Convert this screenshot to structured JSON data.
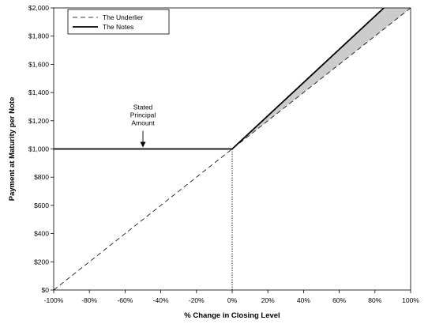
{
  "chart_data": {
    "type": "line",
    "xlabel": "% Change in Closing Level",
    "ylabel": "Payment at Maturity per Note",
    "xlim": [
      -100,
      100
    ],
    "ylim": [
      0,
      2000
    ],
    "x_ticks": [
      -100,
      -80,
      -60,
      -40,
      -20,
      0,
      20,
      40,
      60,
      80,
      100
    ],
    "x_tick_labels": [
      "-100%",
      "-80%",
      "-60%",
      "-40%",
      "-20%",
      "0%",
      "20%",
      "40%",
      "60%",
      "80%",
      "100%"
    ],
    "y_ticks": [
      0,
      200,
      400,
      600,
      800,
      1000,
      1200,
      1400,
      1600,
      1800,
      2000
    ],
    "y_tick_labels": [
      "$0",
      "$200",
      "$400",
      "$600",
      "$800",
      "$1,000",
      "$1,200",
      "$1,400",
      "$1,600",
      "$1,800",
      "$2,000"
    ],
    "series": [
      {
        "name": "The Underlier",
        "style": "dashed",
        "color": "#000000",
        "x": [
          -100,
          100
        ],
        "y": [
          0,
          2000
        ]
      },
      {
        "name": "The Notes",
        "style": "solid",
        "color": "#000000",
        "x": [
          -100,
          0,
          85
        ],
        "y": [
          1000,
          1000,
          2000
        ]
      }
    ],
    "shaded_region": {
      "between": [
        "The Notes",
        "The Underlier"
      ],
      "x_range": [
        0,
        100
      ],
      "color": "#cccccc"
    },
    "reference_line": {
      "x": 0,
      "style": "dotted",
      "from_y": 0,
      "to_y": 1000
    },
    "annotation": {
      "lines": [
        "Stated",
        "Principal",
        "Amount"
      ],
      "x": -50,
      "y": 1000
    },
    "legend": {
      "position": "top-left"
    },
    "grid": false
  }
}
